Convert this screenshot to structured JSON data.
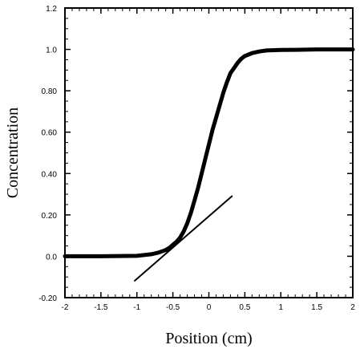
{
  "chart_data": {
    "type": "line",
    "title": "",
    "xlabel": "Position (cm)",
    "ylabel": "Concentration",
    "xlim": [
      -2,
      2
    ],
    "ylim": [
      -0.2,
      1.2
    ],
    "x_ticks": [
      -2,
      -1.5,
      -1,
      -0.5,
      0,
      0.5,
      1,
      1.5,
      2
    ],
    "x_tick_labels": [
      "-2",
      "-1.5",
      "-1",
      "-0.5",
      "0",
      "0.5",
      "1",
      "1.5",
      "2"
    ],
    "y_ticks": [
      -0.2,
      0,
      0.2,
      0.4,
      0.6,
      0.8,
      1.0,
      1.2
    ],
    "y_tick_labels": [
      "-0.20",
      "0.0",
      "0.20",
      "0.40",
      "0.60",
      "0.80",
      "1.0",
      "1.2"
    ],
    "grid": false,
    "series": [
      {
        "style": "thick",
        "x": [
          -2.0,
          -1.5,
          -1.0,
          -0.8,
          -0.7,
          -0.6,
          -0.55,
          -0.5,
          -0.45,
          -0.4,
          -0.35,
          -0.3,
          -0.25,
          -0.2,
          -0.15,
          -0.1,
          -0.05,
          0.0,
          0.05,
          0.1,
          0.15,
          0.2,
          0.25,
          0.3,
          0.35,
          0.4,
          0.45,
          0.5,
          0.55,
          0.6,
          0.7,
          0.8,
          1.0,
          1.2,
          1.5,
          2.0
        ],
        "y": [
          0.0,
          0.0,
          0.002,
          0.01,
          0.018,
          0.03,
          0.04,
          0.055,
          0.07,
          0.09,
          0.12,
          0.16,
          0.21,
          0.27,
          0.33,
          0.4,
          0.47,
          0.54,
          0.61,
          0.67,
          0.73,
          0.79,
          0.84,
          0.885,
          0.91,
          0.935,
          0.955,
          0.968,
          0.975,
          0.982,
          0.99,
          0.995,
          0.997,
          0.998,
          1.0,
          1.0
        ]
      },
      {
        "style": "thin",
        "x": [
          -1.03,
          0.32
        ],
        "y": [
          -0.118,
          0.29
        ]
      }
    ]
  }
}
